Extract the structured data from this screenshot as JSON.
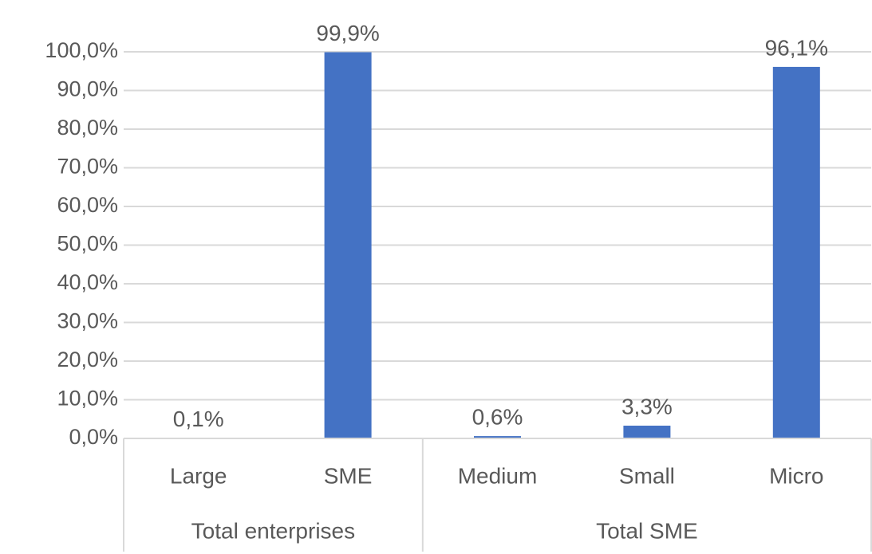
{
  "chart_data": {
    "type": "bar",
    "title": "",
    "xlabel": "",
    "ylabel": "",
    "ylim": [
      0,
      100
    ],
    "y_ticks": [
      "0,0%",
      "10,0%",
      "20,0%",
      "30,0%",
      "40,0%",
      "50,0%",
      "60,0%",
      "70,0%",
      "80,0%",
      "90,0%",
      "100,0%"
    ],
    "grid": true,
    "bar_color": "#4472C4",
    "groups": [
      {
        "label": "Total enterprises",
        "categories": [
          "Large",
          "SME"
        ]
      },
      {
        "label": "Total SME",
        "categories": [
          "Medium",
          "Small",
          "Micro"
        ]
      }
    ],
    "categories": [
      "Large",
      "SME",
      "Medium",
      "Small",
      "Micro"
    ],
    "values": [
      0.1,
      99.9,
      0.6,
      3.3,
      96.1
    ],
    "data_labels": [
      "0,1%",
      "99,9%",
      "0,6%",
      "3,3%",
      "96,1%"
    ]
  }
}
